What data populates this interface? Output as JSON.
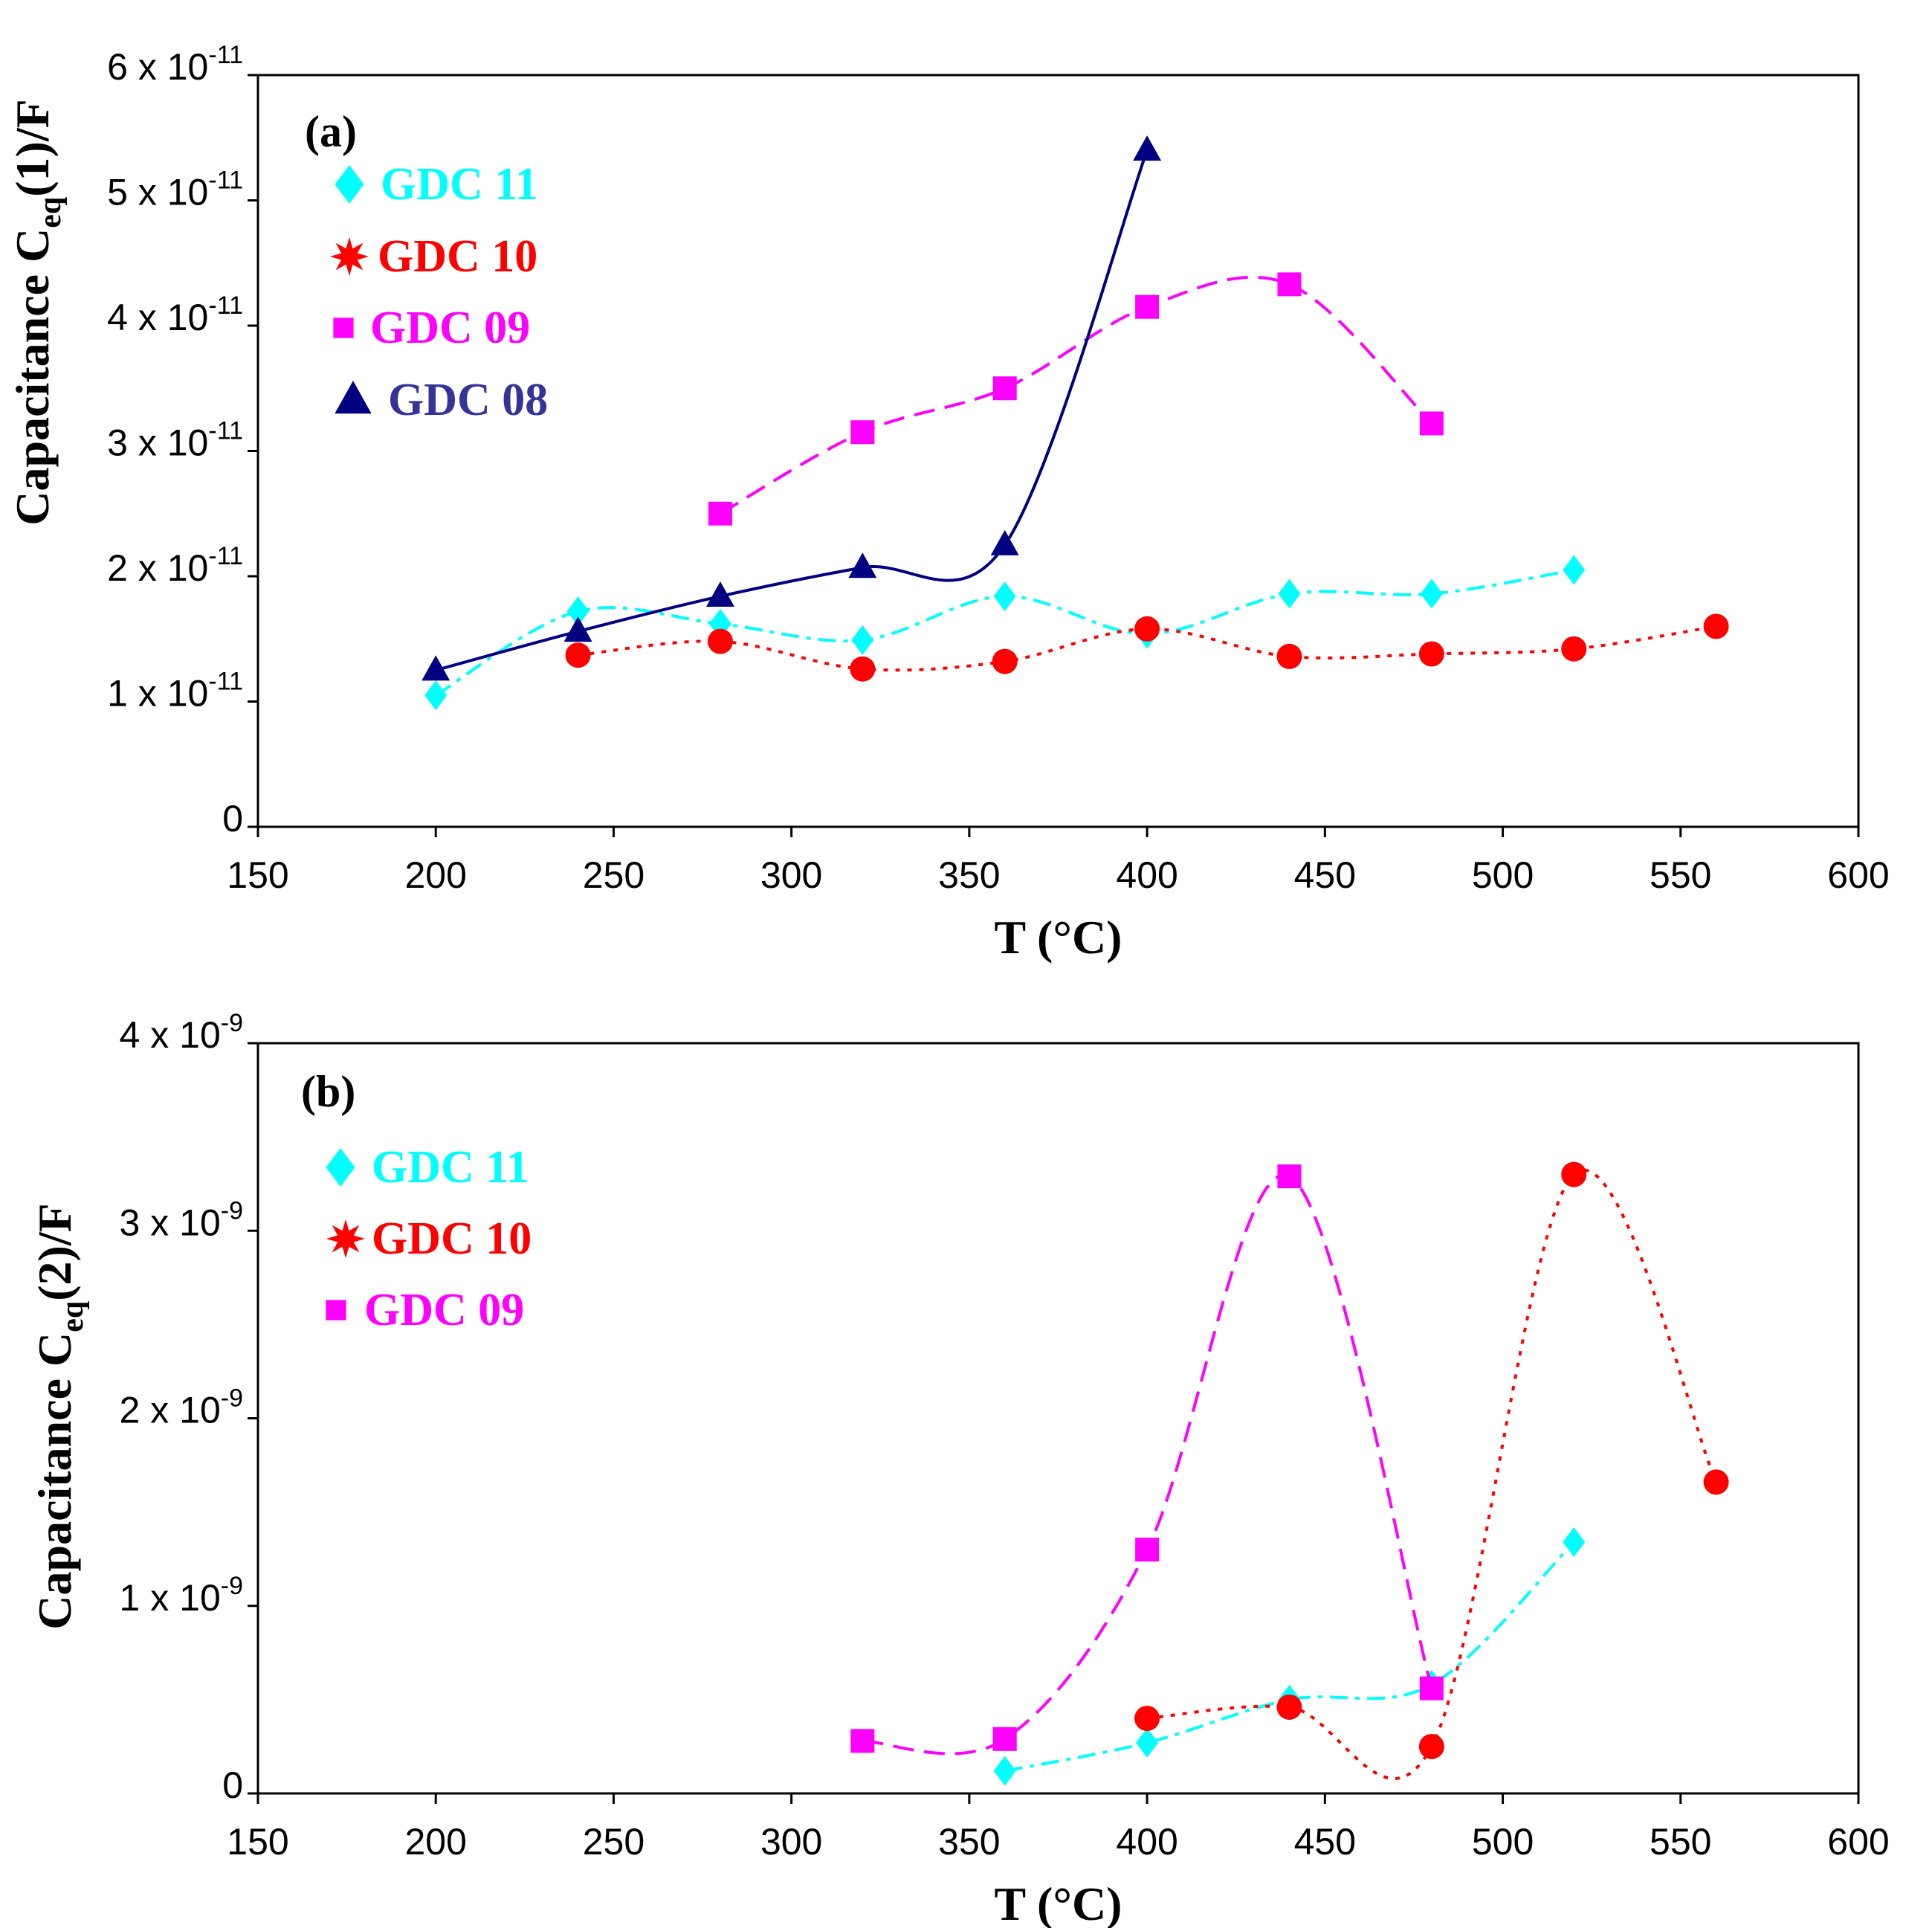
{
  "chart_data": [
    {
      "type": "line",
      "panel_label": "(a)",
      "xlabel": "T (°C)",
      "ylabel": {
        "prefix": "Capacitance  C",
        "sub": "eq",
        "suffix": "(1)/F"
      },
      "xlim": [
        150,
        600
      ],
      "ylim": [
        0,
        6e-11
      ],
      "xticks": [
        "150",
        "200",
        "250",
        "300",
        "350",
        "400",
        "450",
        "500",
        "550",
        "600"
      ],
      "yticks": [
        {
          "value": 0,
          "mantissa": "0",
          "exp": ""
        },
        {
          "value": 1e-11,
          "mantissa": "1 x 10",
          "exp": "-11"
        },
        {
          "value": 2e-11,
          "mantissa": "2 x 10",
          "exp": "-11"
        },
        {
          "value": 3e-11,
          "mantissa": "3 x 10",
          "exp": "-11"
        },
        {
          "value": 4e-11,
          "mantissa": "4 x 10",
          "exp": "-11"
        },
        {
          "value": 5e-11,
          "mantissa": "5 x 10",
          "exp": "-11"
        },
        {
          "value": 6e-11,
          "mantissa": "6 x 10",
          "exp": "-11"
        }
      ],
      "series": [
        {
          "name": "GDC 11",
          "color": "#00FFFF",
          "marker": "diamond",
          "dash": "dashdot",
          "x": [
            200,
            240,
            280,
            320,
            360,
            400,
            440,
            480,
            520
          ],
          "y": [
            1.05e-11,
            1.72e-11,
            1.62e-11,
            1.49e-11,
            1.84e-11,
            1.54e-11,
            1.86e-11,
            1.86e-11,
            2.05e-11
          ]
        },
        {
          "name": "GDC 10",
          "color": "#FF0000",
          "marker": "circle",
          "legend_marker": "star",
          "dash": "dotted",
          "x": [
            240,
            280,
            320,
            360,
            400,
            440,
            480,
            520,
            560
          ],
          "y": [
            1.37e-11,
            1.48e-11,
            1.26e-11,
            1.32e-11,
            1.58e-11,
            1.36e-11,
            1.38e-11,
            1.42e-11,
            1.6e-11
          ]
        },
        {
          "name": "GDC 09",
          "color": "#FF00FF",
          "marker": "square",
          "dash": "dashed",
          "x": [
            280,
            320,
            360,
            400,
            440,
            480
          ],
          "y": [
            2.5e-11,
            3.15e-11,
            3.5e-11,
            4.15e-11,
            4.33e-11,
            3.22e-11
          ]
        },
        {
          "name": "GDC 08",
          "color": "#000080",
          "legend_color": "#333399",
          "marker": "triangle",
          "dash": "solid",
          "x": [
            200,
            240,
            280,
            320,
            360,
            400
          ],
          "y": [
            1.25e-11,
            1.56e-11,
            1.84e-11,
            2.07e-11,
            2.25e-11,
            5.4e-11
          ]
        }
      ]
    },
    {
      "type": "line",
      "panel_label": "(b)",
      "xlabel": "T (°C)",
      "ylabel": {
        "prefix": "Capacitance  C",
        "sub": "eq",
        "suffix": "(2)/F"
      },
      "xlim": [
        150,
        600
      ],
      "ylim": [
        0,
        4e-09
      ],
      "xticks": [
        "150",
        "200",
        "250",
        "300",
        "350",
        "400",
        "450",
        "500",
        "550",
        "600"
      ],
      "yticks": [
        {
          "value": 0,
          "mantissa": "0",
          "exp": ""
        },
        {
          "value": 1e-09,
          "mantissa": "1 x 10",
          "exp": "-9"
        },
        {
          "value": 2e-09,
          "mantissa": "2 x 10",
          "exp": "-9"
        },
        {
          "value": 3e-09,
          "mantissa": "3 x 10",
          "exp": "-9"
        },
        {
          "value": 4e-09,
          "mantissa": "4 x 10",
          "exp": "-9"
        }
      ],
      "series": [
        {
          "name": "GDC 11",
          "color": "#00FFFF",
          "marker": "diamond",
          "dash": "dashdot",
          "x": [
            360,
            400,
            440,
            480,
            520
          ],
          "y": [
            1.2e-10,
            2.7e-10,
            5e-10,
            5.8e-10,
            1.34e-09
          ]
        },
        {
          "name": "GDC 10",
          "color": "#FF0000",
          "marker": "circle",
          "legend_marker": "star",
          "dash": "dotted",
          "x": [
            400,
            440,
            480,
            520,
            560
          ],
          "y": [
            4e-10,
            4.6e-10,
            2.5e-10,
            3.3e-09,
            1.66e-09
          ]
        },
        {
          "name": "GDC 09",
          "color": "#FF00FF",
          "marker": "square",
          "dash": "dashed",
          "x": [
            320,
            360,
            400,
            440,
            480
          ],
          "y": [
            2.8e-10,
            2.9e-10,
            1.3e-09,
            3.29e-09,
            5.6e-10
          ]
        }
      ]
    }
  ]
}
